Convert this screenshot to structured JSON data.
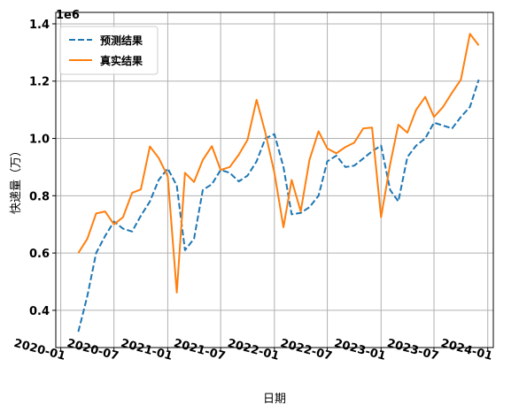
{
  "chart_data": {
    "type": "line",
    "title": "",
    "xlabel": "日期",
    "ylabel": "快递量（万）",
    "y_offset_label": "1e6",
    "ylim": [
      270000,
      1440000
    ],
    "xlim": [
      "2019-12-15",
      "2024-01-20"
    ],
    "grid": true,
    "legend_position": "upper-left",
    "x_ticks": [
      "2020-01",
      "2020-07",
      "2021-01",
      "2021-07",
      "2022-01",
      "2022-07",
      "2023-01",
      "2023-07",
      "2024-01"
    ],
    "y_ticks": [
      0.4,
      0.6,
      0.8,
      1.0,
      1.2,
      1.4
    ],
    "y_tick_values": [
      400000,
      600000,
      800000,
      1000000,
      1200000,
      1400000
    ],
    "x": [
      "2020-03",
      "2020-04",
      "2020-05",
      "2020-06",
      "2020-07",
      "2020-08",
      "2020-09",
      "2020-10",
      "2020-11",
      "2020-12",
      "2021-01",
      "2021-02",
      "2021-03",
      "2021-04",
      "2021-05",
      "2021-06",
      "2021-07",
      "2021-08",
      "2021-09",
      "2021-10",
      "2021-11",
      "2021-12",
      "2022-01",
      "2022-02",
      "2022-03",
      "2022-04",
      "2022-05",
      "2022-06",
      "2022-07",
      "2022-08",
      "2022-09",
      "2022-10",
      "2022-11",
      "2022-12",
      "2023-01",
      "2023-02",
      "2023-03",
      "2023-04",
      "2023-05",
      "2023-06",
      "2023-07",
      "2023-08",
      "2023-09",
      "2023-10",
      "2023-11",
      "2023-12"
    ],
    "series": [
      {
        "name": "预测结果",
        "color": "#1f77b4",
        "style": "dashed",
        "values": [
          325000,
          450000,
          600000,
          660000,
          710000,
          685000,
          675000,
          730000,
          780000,
          855000,
          895000,
          835000,
          610000,
          650000,
          820000,
          840000,
          890000,
          880000,
          850000,
          870000,
          920000,
          1000000,
          1015000,
          900000,
          735000,
          740000,
          760000,
          800000,
          920000,
          940000,
          900000,
          905000,
          930000,
          955000,
          975000,
          820000,
          780000,
          935000,
          975000,
          1000000,
          1055000,
          1045000,
          1035000,
          1075000,
          1110000,
          1205000
        ]
      },
      {
        "name": "真实结果",
        "color": "#ff7f0e",
        "style": "solid",
        "values": [
          600000,
          650000,
          738000,
          745000,
          700000,
          725000,
          810000,
          822000,
          972000,
          932000,
          868000,
          462000,
          880000,
          848000,
          925000,
          973000,
          890000,
          900000,
          943000,
          995000,
          1135000,
          1020000,
          880000,
          690000,
          855000,
          745000,
          925000,
          1025000,
          965000,
          948000,
          970000,
          985000,
          1035000,
          1038000,
          725000,
          910000,
          1048000,
          1020000,
          1100000,
          1145000,
          1075000,
          1110000,
          1160000,
          1205000,
          1365000,
          1325000
        ]
      }
    ]
  }
}
